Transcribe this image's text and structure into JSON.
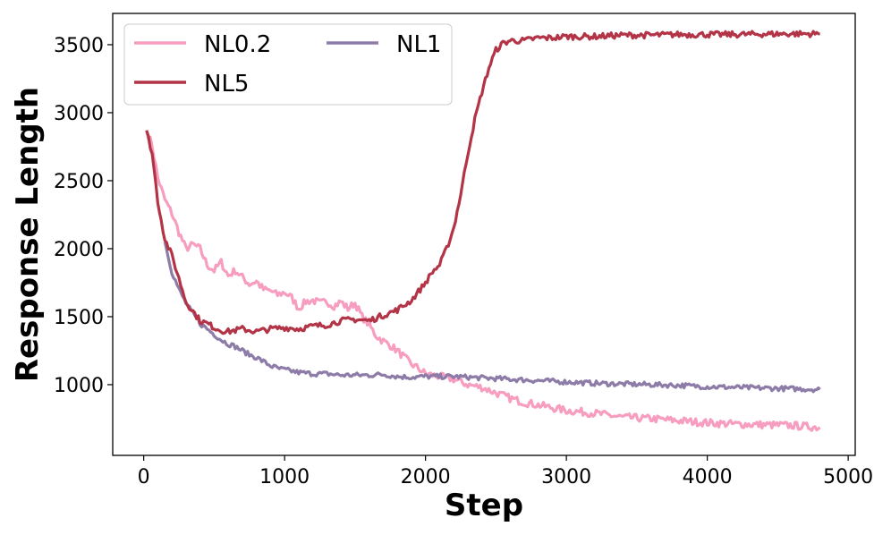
{
  "chart_data": {
    "type": "line",
    "xlabel": "Step",
    "ylabel": "Response Length",
    "xlim": [
      -220,
      5050
    ],
    "ylim": [
      480,
      3730
    ],
    "xticks": [
      0,
      1000,
      2000,
      3000,
      4000,
      5000
    ],
    "yticks": [
      1000,
      1500,
      2000,
      2500,
      3000,
      3500
    ],
    "grid": false,
    "legend_placement": "top-left",
    "series": [
      {
        "name": "NL0.2",
        "color": "#f79dbf",
        "x": [
          20,
          60,
          100,
          150,
          200,
          250,
          300,
          350,
          400,
          450,
          500,
          550,
          600,
          650,
          700,
          750,
          800,
          850,
          900,
          950,
          1000,
          1050,
          1100,
          1150,
          1200,
          1250,
          1300,
          1350,
          1400,
          1450,
          1500,
          1550,
          1600,
          1650,
          1700,
          1750,
          1800,
          1850,
          1900,
          1950,
          2000,
          2100,
          2200,
          2300,
          2400,
          2500,
          2600,
          2700,
          2800,
          2900,
          3000,
          3200,
          3400,
          3600,
          3800,
          4000,
          4200,
          4400,
          4600,
          4800
        ],
        "y": [
          2870,
          2760,
          2520,
          2360,
          2260,
          2120,
          2000,
          2030,
          2000,
          1880,
          1840,
          1900,
          1800,
          1840,
          1790,
          1740,
          1760,
          1700,
          1690,
          1660,
          1680,
          1640,
          1560,
          1610,
          1620,
          1600,
          1610,
          1580,
          1610,
          1560,
          1600,
          1500,
          1440,
          1360,
          1320,
          1290,
          1250,
          1200,
          1150,
          1120,
          1080,
          1060,
          1040,
          1000,
          980,
          940,
          900,
          870,
          850,
          830,
          810,
          790,
          760,
          750,
          735,
          720,
          710,
          705,
          700,
          685
        ]
      },
      {
        "name": "NL5",
        "color": "#b33446",
        "x": [
          20,
          60,
          100,
          150,
          200,
          250,
          300,
          350,
          400,
          450,
          500,
          550,
          600,
          700,
          800,
          900,
          1000,
          1100,
          1200,
          1300,
          1400,
          1500,
          1600,
          1700,
          1800,
          1900,
          2000,
          2050,
          2100,
          2150,
          2200,
          2250,
          2300,
          2350,
          2400,
          2450,
          2500,
          2550,
          2600,
          2700,
          2800,
          2900,
          3000,
          3200,
          3400,
          3600,
          3800,
          4000,
          4200,
          4400,
          4600,
          4800
        ],
        "y": [
          2870,
          2700,
          2350,
          2070,
          1950,
          1780,
          1610,
          1540,
          1470,
          1450,
          1420,
          1400,
          1390,
          1410,
          1390,
          1410,
          1420,
          1410,
          1430,
          1440,
          1470,
          1480,
          1470,
          1510,
          1550,
          1620,
          1750,
          1830,
          1880,
          2000,
          2150,
          2400,
          2700,
          2950,
          3150,
          3330,
          3460,
          3510,
          3530,
          3530,
          3550,
          3550,
          3560,
          3560,
          3570,
          3570,
          3575,
          3575,
          3575,
          3578,
          3580,
          3580
        ]
      },
      {
        "name": "NL1",
        "color": "#8d7ba8",
        "x": [
          150,
          200,
          250,
          300,
          350,
          400,
          450,
          500,
          550,
          600,
          650,
          700,
          750,
          800,
          850,
          900,
          950,
          1000,
          1100,
          1200,
          1300,
          1400,
          1500,
          1600,
          1700,
          1800,
          1900,
          2000,
          2200,
          2400,
          2600,
          2800,
          3000,
          3200,
          3400,
          3600,
          3800,
          4000,
          4200,
          4400,
          4600,
          4800
        ],
        "y": [
          2050,
          1830,
          1700,
          1600,
          1520,
          1450,
          1410,
          1370,
          1330,
          1300,
          1280,
          1250,
          1220,
          1200,
          1170,
          1140,
          1120,
          1110,
          1090,
          1080,
          1080,
          1070,
          1070,
          1070,
          1075,
          1060,
          1055,
          1060,
          1060,
          1050,
          1040,
          1030,
          1020,
          1010,
          1005,
          1000,
          995,
          985,
          980,
          975,
          970,
          965
        ]
      }
    ]
  }
}
